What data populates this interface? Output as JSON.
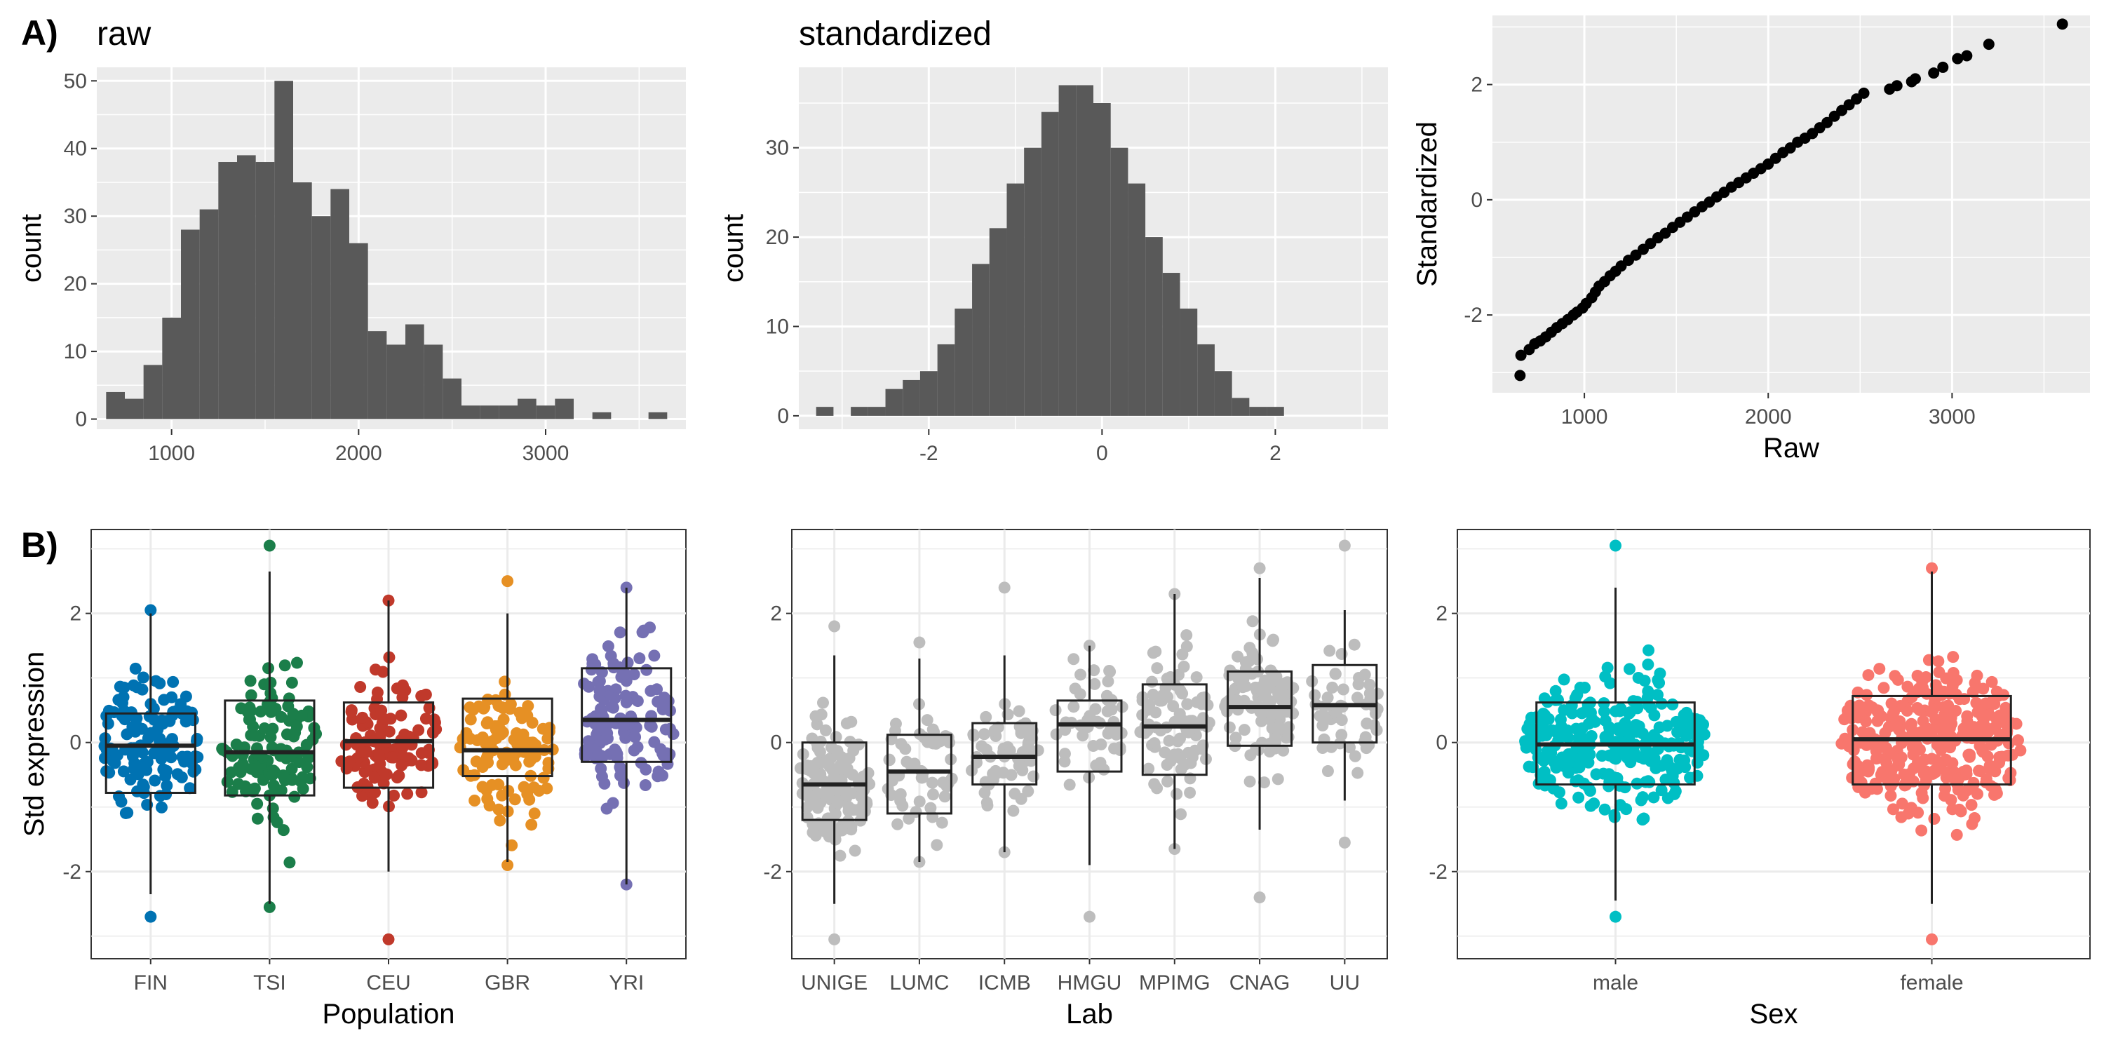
{
  "panel_labels": {
    "a": "A)",
    "b": "B)"
  },
  "chart_data": [
    {
      "id": "hist_raw",
      "type": "bar",
      "title": "raw",
      "xlabel": "",
      "ylabel": "count",
      "xlim": [
        600,
        3750
      ],
      "ylim": [
        -1.5,
        52
      ],
      "xticks": [
        1000,
        2000,
        3000
      ],
      "yticks": [
        0,
        10,
        20,
        30,
        40,
        50
      ],
      "bin_width": 100,
      "bins_start": 650,
      "values": [
        4,
        3,
        8,
        15,
        28,
        31,
        38,
        39,
        38,
        50,
        35,
        30,
        34,
        26,
        13,
        11,
        14,
        11,
        6,
        2,
        2,
        2,
        3,
        2,
        3,
        0,
        1,
        0,
        0,
        1
      ],
      "grid": true
    },
    {
      "id": "hist_std",
      "type": "bar",
      "title": "standardized",
      "xlabel": "",
      "ylabel": "count",
      "xlim": [
        -3.5,
        3.3
      ],
      "ylim": [
        -1.5,
        39
      ],
      "xticks": [
        -2,
        0,
        2
      ],
      "yticks": [
        0,
        10,
        20,
        30
      ],
      "bin_width": 0.2,
      "bins_start": -3.3,
      "values": [
        1,
        0,
        1,
        1,
        3,
        4,
        5,
        8,
        12,
        17,
        21,
        26,
        30,
        34,
        37,
        37,
        35,
        30,
        26,
        20,
        16,
        12,
        8,
        5,
        2,
        1,
        1
      ],
      "grid": true
    },
    {
      "id": "scatter_raw_std",
      "type": "scatter",
      "title": "",
      "xlabel": "Raw",
      "ylabel": "Standardized",
      "xlim": [
        500,
        3750
      ],
      "ylim": [
        -3.35,
        3.2
      ],
      "xticks": [
        1000,
        2000,
        3000
      ],
      "yticks": [
        -2,
        0,
        2
      ],
      "points": [
        [
          650,
          -3.05
        ],
        [
          655,
          -2.7
        ],
        [
          700,
          -2.6
        ],
        [
          730,
          -2.5
        ],
        [
          760,
          -2.45
        ],
        [
          790,
          -2.38
        ],
        [
          820,
          -2.3
        ],
        [
          850,
          -2.22
        ],
        [
          880,
          -2.15
        ],
        [
          910,
          -2.08
        ],
        [
          940,
          -2.0
        ],
        [
          960,
          -1.95
        ],
        [
          990,
          -1.88
        ],
        [
          1010,
          -1.8
        ],
        [
          1040,
          -1.7
        ],
        [
          1060,
          -1.6
        ],
        [
          1080,
          -1.5
        ],
        [
          1110,
          -1.42
        ],
        [
          1140,
          -1.32
        ],
        [
          1170,
          -1.24
        ],
        [
          1200,
          -1.15
        ],
        [
          1240,
          -1.05
        ],
        [
          1280,
          -0.96
        ],
        [
          1320,
          -0.86
        ],
        [
          1360,
          -0.76
        ],
        [
          1400,
          -0.66
        ],
        [
          1440,
          -0.58
        ],
        [
          1480,
          -0.48
        ],
        [
          1520,
          -0.39
        ],
        [
          1560,
          -0.3
        ],
        [
          1600,
          -0.21
        ],
        [
          1640,
          -0.12
        ],
        [
          1680,
          -0.04
        ],
        [
          1720,
          0.05
        ],
        [
          1760,
          0.13
        ],
        [
          1800,
          0.22
        ],
        [
          1840,
          0.3
        ],
        [
          1880,
          0.38
        ],
        [
          1920,
          0.46
        ],
        [
          1960,
          0.54
        ],
        [
          2000,
          0.62
        ],
        [
          2040,
          0.72
        ],
        [
          2080,
          0.82
        ],
        [
          2120,
          0.9
        ],
        [
          2160,
          1.0
        ],
        [
          2200,
          1.07
        ],
        [
          2240,
          1.15
        ],
        [
          2280,
          1.25
        ],
        [
          2320,
          1.34
        ],
        [
          2360,
          1.45
        ],
        [
          2400,
          1.55
        ],
        [
          2440,
          1.65
        ],
        [
          2480,
          1.75
        ],
        [
          2520,
          1.85
        ],
        [
          2660,
          1.92
        ],
        [
          2700,
          1.98
        ],
        [
          2780,
          2.05
        ],
        [
          2800,
          2.1
        ],
        [
          2900,
          2.2
        ],
        [
          2950,
          2.3
        ],
        [
          3030,
          2.45
        ],
        [
          3080,
          2.5
        ],
        [
          3200,
          2.7
        ],
        [
          3600,
          3.05
        ]
      ],
      "grid": true
    },
    {
      "id": "box_population",
      "type": "box",
      "xlabel": "Population",
      "ylabel": "Std expression",
      "ylim": [
        -3.35,
        3.3
      ],
      "yticks": [
        -2,
        0,
        2
      ],
      "categories": [
        "FIN",
        "TSI",
        "CEU",
        "GBR",
        "YRI"
      ],
      "colors": [
        "#0072B2",
        "#1b7e4a",
        "#c0392b",
        "#e69024",
        "#7570b3"
      ],
      "boxes": [
        {
          "q1": -0.78,
          "median": -0.05,
          "q3": 0.45,
          "lo": -2.35,
          "hi": 2.0,
          "min": -2.7,
          "max": 2.05,
          "n": 130
        },
        {
          "q1": -0.82,
          "median": -0.15,
          "q3": 0.65,
          "lo": -2.5,
          "hi": 2.65,
          "min": -2.55,
          "max": 3.05,
          "n": 115
        },
        {
          "q1": -0.7,
          "median": 0.02,
          "q3": 0.62,
          "lo": -2.0,
          "hi": 2.2,
          "min": -3.05,
          "max": 2.2,
          "n": 110
        },
        {
          "q1": -0.52,
          "median": -0.12,
          "q3": 0.68,
          "lo": -1.85,
          "hi": 2.0,
          "min": -1.9,
          "max": 2.5,
          "n": 105
        },
        {
          "q1": -0.3,
          "median": 0.35,
          "q3": 1.15,
          "lo": -2.2,
          "hi": 2.4,
          "min": -2.2,
          "max": 2.4,
          "n": 125
        }
      ]
    },
    {
      "id": "box_lab",
      "type": "box",
      "xlabel": "Lab",
      "ylabel": "",
      "ylim": [
        -3.35,
        3.3
      ],
      "yticks": [
        -2,
        0,
        2
      ],
      "categories": [
        "UNIGE",
        "LUMC",
        "ICMB",
        "HMGU",
        "MPIMG",
        "CNAG",
        "UU"
      ],
      "colors": [
        "#bdbdbd",
        "#bdbdbd",
        "#bdbdbd",
        "#bdbdbd",
        "#bdbdbd",
        "#bdbdbd",
        "#bdbdbd"
      ],
      "boxes": [
        {
          "q1": -1.2,
          "median": -0.65,
          "q3": 0.0,
          "lo": -2.5,
          "hi": 1.35,
          "min": -3.05,
          "max": 1.8,
          "n": 150
        },
        {
          "q1": -1.1,
          "median": -0.45,
          "q3": 0.12,
          "lo": -1.85,
          "hi": 1.3,
          "min": -1.85,
          "max": 1.55,
          "n": 55
        },
        {
          "q1": -0.65,
          "median": -0.22,
          "q3": 0.3,
          "lo": -1.7,
          "hi": 1.35,
          "min": -1.7,
          "max": 2.4,
          "n": 60
        },
        {
          "q1": -0.45,
          "median": 0.28,
          "q3": 0.65,
          "lo": -1.9,
          "hi": 1.5,
          "min": -2.7,
          "max": 1.5,
          "n": 50
        },
        {
          "q1": -0.5,
          "median": 0.25,
          "q3": 0.9,
          "lo": -1.65,
          "hi": 2.3,
          "min": -1.65,
          "max": 2.3,
          "n": 90
        },
        {
          "q1": -0.05,
          "median": 0.55,
          "q3": 1.1,
          "lo": -1.35,
          "hi": 2.55,
          "min": -2.4,
          "max": 2.7,
          "n": 110
        },
        {
          "q1": 0.0,
          "median": 0.58,
          "q3": 1.2,
          "lo": -0.9,
          "hi": 2.05,
          "min": -1.55,
          "max": 3.05,
          "n": 50
        }
      ]
    },
    {
      "id": "box_sex",
      "type": "box",
      "xlabel": "Sex",
      "ylabel": "",
      "ylim": [
        -3.35,
        3.3
      ],
      "yticks": [
        -2,
        0,
        2
      ],
      "categories": [
        "male",
        "female"
      ],
      "colors": [
        "#00BFC4",
        "#F8766D"
      ],
      "boxes": [
        {
          "q1": -0.65,
          "median": -0.03,
          "q3": 0.62,
          "lo": -2.45,
          "hi": 2.4,
          "min": -2.7,
          "max": 3.05,
          "n": 280
        },
        {
          "q1": -0.65,
          "median": 0.05,
          "q3": 0.72,
          "lo": -2.5,
          "hi": 2.65,
          "min": -3.05,
          "max": 2.7,
          "n": 320
        }
      ]
    }
  ]
}
